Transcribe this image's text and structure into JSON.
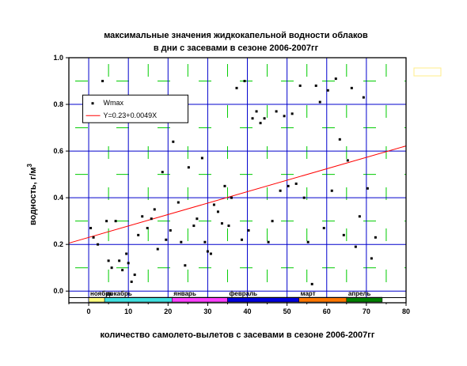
{
  "chart_data": {
    "type": "scatter",
    "title_line1": "максимальные значения жидкокапельной водности облаков",
    "title_line2": "в дни с засевами в сезоне 2006-2007гг",
    "xlabel": "количество самолето-вылетов с засевами в сезоне 2006-2007гг",
    "ylabel": "водность, г/м",
    "ylabel_sup": "3",
    "xlim": [
      -5,
      80
    ],
    "ylim": [
      -0.05,
      1.0
    ],
    "x_ticks": [
      0,
      10,
      20,
      30,
      40,
      50,
      60,
      70,
      80
    ],
    "y_ticks": [
      0.0,
      0.2,
      0.4,
      0.6,
      0.8,
      1.0
    ],
    "x_tick_labels": [
      "0",
      "10",
      "20",
      "30",
      "40",
      "50",
      "60",
      "70",
      "80"
    ],
    "y_tick_labels": [
      "0.0",
      "0.2",
      "0.4",
      "0.6",
      "0.8",
      "1.0"
    ],
    "series": [
      {
        "name": "Wmax",
        "points": [
          [
            0.5,
            0.27
          ],
          [
            1.2,
            0.23
          ],
          [
            2.3,
            0.2
          ],
          [
            3.5,
            0.9
          ],
          [
            4.5,
            0.3
          ],
          [
            5.0,
            0.13
          ],
          [
            5.8,
            0.1
          ],
          [
            6.8,
            0.3
          ],
          [
            7.7,
            0.13
          ],
          [
            8.5,
            0.09
          ],
          [
            9.5,
            0.16
          ],
          [
            10.0,
            0.12
          ],
          [
            10.8,
            0.04
          ],
          [
            11.6,
            0.07
          ],
          [
            12.5,
            0.24
          ],
          [
            13.5,
            0.32
          ],
          [
            14.8,
            0.27
          ],
          [
            15.8,
            0.31
          ],
          [
            16.6,
            0.35
          ],
          [
            17.4,
            0.18
          ],
          [
            18.6,
            0.51
          ],
          [
            19.5,
            0.22
          ],
          [
            20.6,
            0.26
          ],
          [
            21.3,
            0.64
          ],
          [
            22.6,
            0.38
          ],
          [
            23.3,
            0.21
          ],
          [
            24.3,
            0.11
          ],
          [
            25.2,
            0.53
          ],
          [
            26.5,
            0.28
          ],
          [
            27.3,
            0.31
          ],
          [
            28.6,
            0.57
          ],
          [
            29.3,
            0.21
          ],
          [
            30.0,
            0.17
          ],
          [
            30.8,
            0.16
          ],
          [
            31.6,
            0.37
          ],
          [
            32.6,
            0.34
          ],
          [
            33.6,
            0.29
          ],
          [
            34.3,
            0.45
          ],
          [
            35.3,
            0.28
          ],
          [
            36.0,
            0.4
          ],
          [
            37.3,
            0.87
          ],
          [
            38.6,
            0.22
          ],
          [
            39.3,
            0.9
          ],
          [
            40.3,
            0.26
          ],
          [
            41.3,
            0.74
          ],
          [
            42.3,
            0.77
          ],
          [
            43.3,
            0.72
          ],
          [
            44.3,
            0.74
          ],
          [
            45.3,
            0.21
          ],
          [
            46.3,
            0.3
          ],
          [
            47.3,
            0.77
          ],
          [
            48.3,
            0.43
          ],
          [
            49.3,
            0.75
          ],
          [
            50.3,
            0.45
          ],
          [
            51.3,
            0.76
          ],
          [
            52.3,
            0.46
          ],
          [
            53.3,
            0.88
          ],
          [
            54.3,
            0.4
          ],
          [
            55.3,
            0.21
          ],
          [
            56.3,
            0.03
          ],
          [
            57.3,
            0.88
          ],
          [
            58.3,
            0.81
          ],
          [
            59.3,
            0.27
          ],
          [
            60.3,
            0.86
          ],
          [
            61.3,
            0.43
          ],
          [
            62.3,
            0.91
          ],
          [
            63.3,
            0.65
          ],
          [
            64.3,
            0.24
          ],
          [
            65.3,
            0.56
          ],
          [
            66.3,
            0.87
          ],
          [
            67.3,
            0.19
          ],
          [
            68.3,
            0.32
          ],
          [
            69.3,
            0.83
          ],
          [
            70.3,
            0.44
          ],
          [
            71.3,
            0.14
          ],
          [
            72.3,
            0.23
          ]
        ]
      },
      {
        "name": "Y=0.23+0.0049X",
        "intercept": 0.23,
        "slope": 0.0049
      }
    ],
    "months": [
      {
        "label": "ноябрь",
        "x_start": 0,
        "x_end": 4,
        "color": "#ffff80"
      },
      {
        "label": "декабрь",
        "x_start": 4,
        "x_end": 21,
        "color": "#40e0e0"
      },
      {
        "label": "январь",
        "x_start": 21,
        "x_end": 35,
        "color": "#ff40ff"
      },
      {
        "label": "февраль",
        "x_start": 35,
        "x_end": 53,
        "color": "#0000dd"
      },
      {
        "label": "март",
        "x_start": 53,
        "x_end": 65,
        "color": "#ff7700"
      },
      {
        "label": "апрель",
        "x_start": 65,
        "x_end": 74,
        "color": "#008000"
      }
    ],
    "legend_placement": "top-left",
    "grid": true,
    "colors": {
      "points": "#000000",
      "fit_line": "#ff0000",
      "grid_major": "#0000cc",
      "grid_minor": "#00cc00",
      "axis": "#000000"
    }
  }
}
